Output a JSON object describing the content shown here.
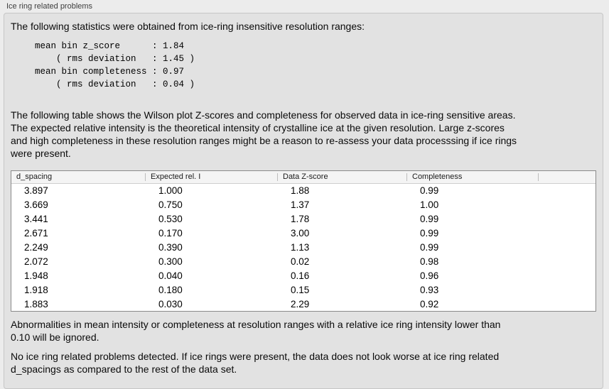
{
  "panel": {
    "title": "Ice ring related problems"
  },
  "intro": "The following statistics were obtained from ice-ring insensitive resolution ranges:",
  "stats_block": "mean bin z_score      : 1.84\n    ( rms deviation   : 1.45 )\nmean bin completeness : 0.97\n    ( rms deviation   : 0.04 )",
  "description": "The following table shows the Wilson plot Z-scores and completeness for observed data in ice-ring sensitive areas.\nThe expected relative intensity is the theoretical intensity of crystalline ice at the given resolution. Large z-scores\nand high completeness in these resolution ranges might be a reason to re-assess your data processsing if ice rings\nwere present.",
  "table": {
    "columns": [
      "d_spacing",
      "Expected rel. I",
      "Data Z-score",
      "Completeness",
      ""
    ],
    "rows": [
      [
        "3.897",
        "1.000",
        "1.88",
        "0.99"
      ],
      [
        "3.669",
        "0.750",
        "1.37",
        "1.00"
      ],
      [
        "3.441",
        "0.530",
        "1.78",
        "0.99"
      ],
      [
        "2.671",
        "0.170",
        "3.00",
        "0.99"
      ],
      [
        "2.249",
        "0.390",
        "1.13",
        "0.99"
      ],
      [
        "2.072",
        "0.300",
        "0.02",
        "0.98"
      ],
      [
        "1.948",
        "0.040",
        "0.16",
        "0.96"
      ],
      [
        "1.918",
        "0.180",
        "0.15",
        "0.93"
      ],
      [
        "1.883",
        "0.030",
        "2.29",
        "0.92"
      ]
    ]
  },
  "note_ignore": "Abnormalities in mean intensity or completeness at resolution ranges with a relative ice ring intensity lower than\n0.10 will be ignored.",
  "conclusion": "No ice ring related problems detected. If ice rings were present, the data does not look worse at ice ring related\nd_spacings as compared to the rest of the data set."
}
